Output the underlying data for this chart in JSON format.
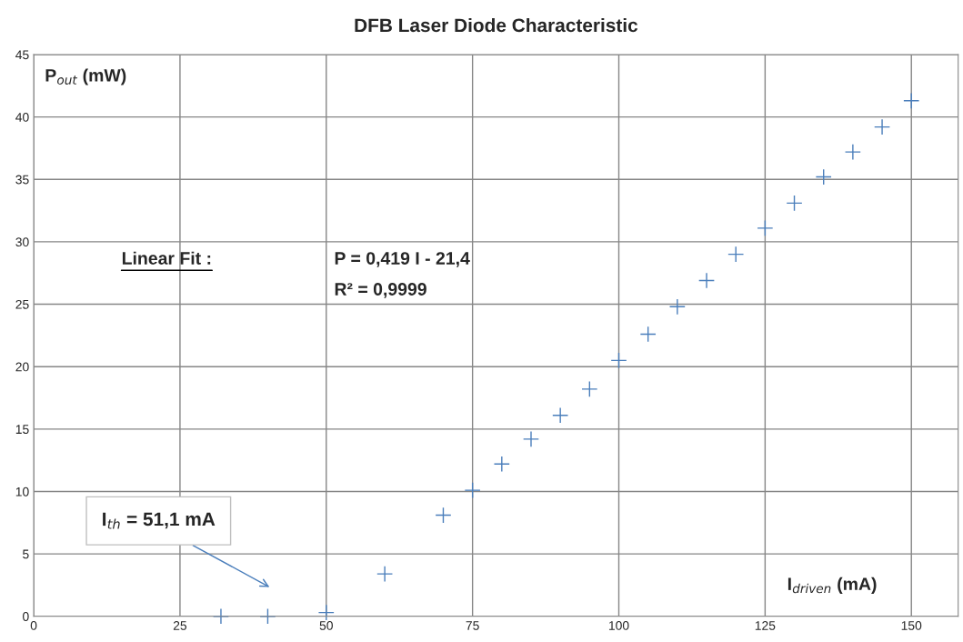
{
  "chart_data": {
    "type": "scatter",
    "title": "DFB Laser Diode Characteristic",
    "xlabel": "I$_{driven}$ (mA)",
    "ylabel": "P$_{out}$ (mW)",
    "x": [
      32,
      40,
      50,
      60,
      70,
      75,
      80,
      85,
      90,
      95,
      100,
      105,
      110,
      115,
      120,
      125,
      130,
      135,
      140,
      145,
      150
    ],
    "series": [
      {
        "color": "#4a7ebb",
        "values": [
          0,
          0,
          0.3,
          3.4,
          8.1,
          10.1,
          12.2,
          14.2,
          16.1,
          18.2,
          20.5,
          22.6,
          24.8,
          26.9,
          29.0,
          31.1,
          33.1,
          35.2,
          37.2,
          39.2,
          41.3
        ]
      }
    ],
    "xlim": [
      0,
      158
    ],
    "xticks": [
      0,
      25,
      50,
      75,
      100,
      125,
      150
    ],
    "ylim": [
      0,
      45
    ],
    "yticks": [
      0,
      5,
      10,
      15,
      20,
      25,
      30,
      35,
      40,
      45
    ],
    "grid": true,
    "marker": "cross",
    "legend": false,
    "annotations": [
      "Linear Fit :",
      "P = 0,419 I - 21,4",
      "R² = 0,9999",
      "I$_{th}$ = 51,1 mA"
    ]
  }
}
